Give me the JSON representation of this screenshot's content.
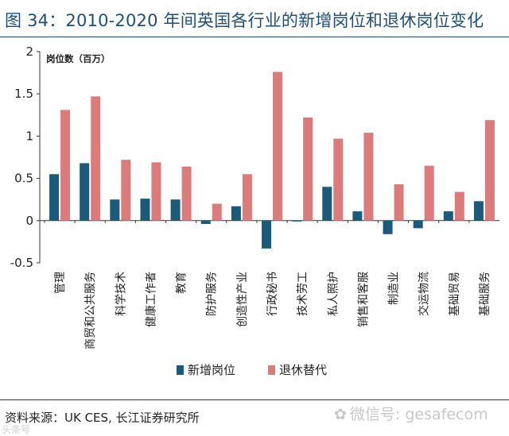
{
  "page": {
    "title": "图 34：2010-2020 年间英国各行业的新增岗位和退休岗位变化",
    "source": "资料来源：UK CES, 长江证券研究所",
    "watermark_text": "微信号: gesafecom",
    "corner_mark": "头条号"
  },
  "colors": {
    "new_jobs": "#1b5a7a",
    "retirement": "#dc7b7b",
    "title": "#1f4e79"
  },
  "chart_data": {
    "type": "bar",
    "title": "图 34：2010-2020 年间英国各行业的新增岗位和退休岗位变化",
    "ylabel": "岗位数（百万）",
    "xlabel": "",
    "ylim": [
      -0.5,
      2
    ],
    "yticks": [
      -0.5,
      0,
      0.5,
      1,
      1.5,
      2
    ],
    "ytick_labels": [
      "-0.5",
      "0",
      "0.5",
      "1",
      "1.5",
      "2"
    ],
    "legend_position": "bottom",
    "categories": [
      "管理",
      "商贸和公共服务",
      "科学技术",
      "健康工作者",
      "教育",
      "防护服务",
      "创造性产业",
      "行政秘书",
      "技术劳工",
      "私人照护",
      "销售和客服",
      "制造业",
      "交运物流",
      "基础贸易",
      "基础服务"
    ],
    "series": [
      {
        "name": "新增岗位",
        "values": [
          0.55,
          0.68,
          0.25,
          0.26,
          0.25,
          -0.04,
          0.17,
          -0.33,
          -0.01,
          0.4,
          0.11,
          -0.16,
          -0.09,
          0.11,
          0.23
        ]
      },
      {
        "name": "退休替代",
        "values": [
          1.31,
          1.47,
          0.72,
          0.69,
          0.64,
          0.2,
          0.55,
          1.76,
          1.22,
          0.97,
          1.04,
          0.43,
          0.65,
          0.34,
          1.19
        ]
      }
    ]
  }
}
